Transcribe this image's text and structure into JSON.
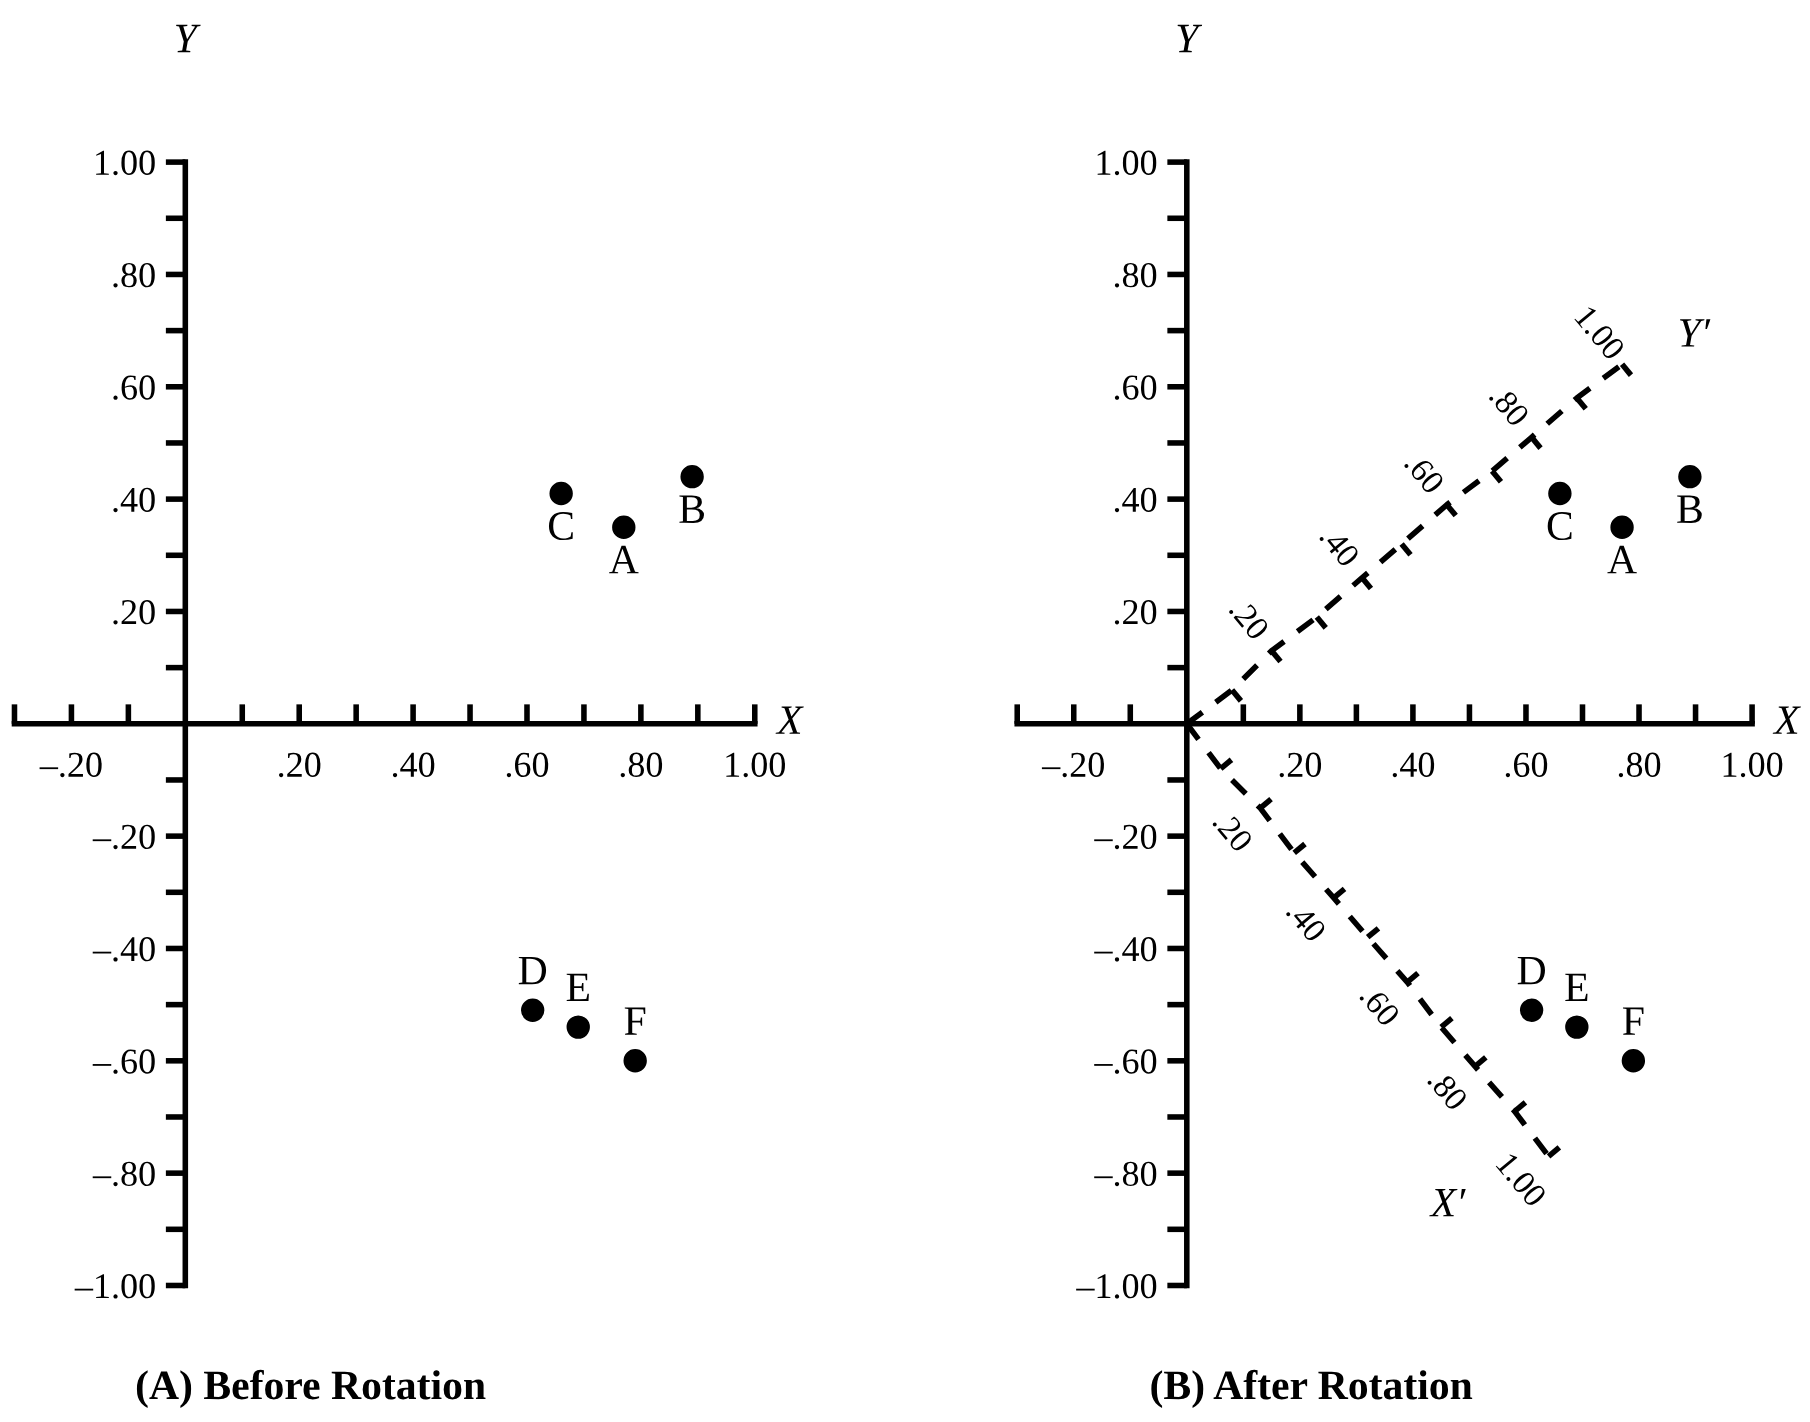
{
  "chart_data": [
    {
      "type": "scatter",
      "title": "(A) Before Rotation",
      "xlabel": "X",
      "ylabel": "Y",
      "xlim": [
        -0.3,
        1.0
      ],
      "ylim": [
        -1.0,
        1.0
      ],
      "xticks": [
        {
          "value": -0.3,
          "label": null
        },
        {
          "value": -0.2,
          "label": "–.20"
        },
        {
          "value": -0.1,
          "label": null
        },
        {
          "value": 0.1,
          "label": null
        },
        {
          "value": 0.2,
          "label": ".20"
        },
        {
          "value": 0.3,
          "label": null
        },
        {
          "value": 0.4,
          "label": ".40"
        },
        {
          "value": 0.5,
          "label": null
        },
        {
          "value": 0.6,
          "label": ".60"
        },
        {
          "value": 0.7,
          "label": null
        },
        {
          "value": 0.8,
          "label": ".80"
        },
        {
          "value": 0.9,
          "label": null
        },
        {
          "value": 1.0,
          "label": "1.00"
        }
      ],
      "yticks": [
        {
          "value": -1.0,
          "label": "–1.00"
        },
        {
          "value": -0.9,
          "label": null
        },
        {
          "value": -0.8,
          "label": "–.80"
        },
        {
          "value": -0.7,
          "label": null
        },
        {
          "value": -0.6,
          "label": "–.60"
        },
        {
          "value": -0.5,
          "label": null
        },
        {
          "value": -0.4,
          "label": "–.40"
        },
        {
          "value": -0.3,
          "label": null
        },
        {
          "value": -0.2,
          "label": "–.20"
        },
        {
          "value": -0.1,
          "label": null
        },
        {
          "value": 0.1,
          "label": null
        },
        {
          "value": 0.2,
          "label": ".20"
        },
        {
          "value": 0.3,
          "label": null
        },
        {
          "value": 0.4,
          "label": ".40"
        },
        {
          "value": 0.5,
          "label": null
        },
        {
          "value": 0.6,
          "label": ".60"
        },
        {
          "value": 0.7,
          "label": null
        },
        {
          "value": 0.8,
          "label": ".80"
        },
        {
          "value": 0.9,
          "label": null
        },
        {
          "value": 1.0,
          "label": "1.00"
        }
      ],
      "grid": false,
      "legend": false,
      "marker": "circle",
      "series": [
        {
          "type": "scatter",
          "color": "#000000",
          "x": [
            0.77,
            0.89,
            0.66,
            0.61,
            0.69,
            0.79
          ],
          "values": [
            0.35,
            0.44,
            0.41,
            -0.51,
            -0.54,
            -0.6
          ]
        }
      ],
      "annotations": [
        {
          "text": "A",
          "x": 0.77,
          "y": 0.35
        },
        {
          "text": "B",
          "x": 0.89,
          "y": 0.44
        },
        {
          "text": "C",
          "x": 0.66,
          "y": 0.41
        },
        {
          "text": "D",
          "x": 0.61,
          "y": -0.51
        },
        {
          "text": "E",
          "x": 0.69,
          "y": -0.54
        },
        {
          "text": "F",
          "x": 0.79,
          "y": -0.6
        }
      ]
    },
    {
      "type": "scatter",
      "title": "(B) After Rotation",
      "xlabel": "X",
      "ylabel": "Y",
      "xlim": [
        -0.3,
        1.0
      ],
      "ylim": [
        -1.0,
        1.0
      ],
      "xticks": [
        {
          "value": -0.3,
          "label": null
        },
        {
          "value": -0.2,
          "label": "–.20"
        },
        {
          "value": -0.1,
          "label": null
        },
        {
          "value": 0.1,
          "label": null
        },
        {
          "value": 0.2,
          "label": ".20"
        },
        {
          "value": 0.3,
          "label": null
        },
        {
          "value": 0.4,
          "label": ".40"
        },
        {
          "value": 0.5,
          "label": null
        },
        {
          "value": 0.6,
          "label": ".60"
        },
        {
          "value": 0.7,
          "label": null
        },
        {
          "value": 0.8,
          "label": ".80"
        },
        {
          "value": 0.9,
          "label": null
        },
        {
          "value": 1.0,
          "label": "1.00"
        }
      ],
      "yticks": [
        {
          "value": -1.0,
          "label": "–1.00"
        },
        {
          "value": -0.9,
          "label": null
        },
        {
          "value": -0.8,
          "label": "–.80"
        },
        {
          "value": -0.7,
          "label": null
        },
        {
          "value": -0.6,
          "label": "–.60"
        },
        {
          "value": -0.5,
          "label": null
        },
        {
          "value": -0.4,
          "label": "–.40"
        },
        {
          "value": -0.3,
          "label": null
        },
        {
          "value": -0.2,
          "label": "–.20"
        },
        {
          "value": -0.1,
          "label": null
        },
        {
          "value": 0.1,
          "label": null
        },
        {
          "value": 0.2,
          "label": ".20"
        },
        {
          "value": 0.3,
          "label": null
        },
        {
          "value": 0.4,
          "label": ".40"
        },
        {
          "value": 0.5,
          "label": null
        },
        {
          "value": 0.6,
          "label": ".60"
        },
        {
          "value": 0.7,
          "label": null
        },
        {
          "value": 0.8,
          "label": ".80"
        },
        {
          "value": 0.9,
          "label": null
        },
        {
          "value": 1.0,
          "label": "1.00"
        }
      ],
      "grid": false,
      "legend": false,
      "marker": "circle",
      "series": [
        {
          "type": "line",
          "name": "Y′",
          "color": "#000000",
          "line_style": "dashed",
          "marker": "none",
          "x": [
            0,
            0.08,
            0.15,
            0.23,
            0.31,
            0.38,
            0.46,
            0.54,
            0.61,
            0.69,
            0.77
          ],
          "values": [
            0,
            0.06,
            0.13,
            0.19,
            0.26,
            0.32,
            0.39,
            0.45,
            0.51,
            0.58,
            0.64
          ]
        },
        {
          "type": "line",
          "name": "X′",
          "color": "#000000",
          "line_style": "dashed",
          "marker": "none",
          "x": [
            0,
            0.06,
            0.13,
            0.19,
            0.26,
            0.32,
            0.39,
            0.45,
            0.51,
            0.58,
            0.64
          ],
          "values": [
            0,
            -0.08,
            -0.15,
            -0.23,
            -0.31,
            -0.38,
            -0.46,
            -0.54,
            -0.61,
            -0.69,
            -0.77
          ]
        },
        {
          "type": "scatter",
          "color": "#000000",
          "x": [
            0.77,
            0.89,
            0.66,
            0.61,
            0.69,
            0.79
          ],
          "values": [
            0.35,
            0.44,
            0.41,
            -0.51,
            -0.54,
            -0.6
          ]
        }
      ],
      "annotations": [
        {
          "text": "A",
          "x": 0.77,
          "y": 0.35
        },
        {
          "text": "B",
          "x": 0.89,
          "y": 0.44
        },
        {
          "text": "C",
          "x": 0.66,
          "y": 0.41
        },
        {
          "text": "D",
          "x": 0.61,
          "y": -0.51
        },
        {
          "text": "E",
          "x": 0.69,
          "y": -0.54
        },
        {
          "text": "F",
          "x": 0.79,
          "y": -0.6
        },
        {
          "text": ".20",
          "x": 0.15,
          "y": 0.13
        },
        {
          "text": ".40",
          "x": 0.31,
          "y": 0.26
        },
        {
          "text": ".60",
          "x": 0.46,
          "y": 0.39
        },
        {
          "text": ".80",
          "x": 0.61,
          "y": 0.51
        },
        {
          "text": "1.00",
          "x": 0.77,
          "y": 0.64
        },
        {
          "text": ".20",
          "x": 0.13,
          "y": -0.15
        },
        {
          "text": ".40",
          "x": 0.26,
          "y": -0.31
        },
        {
          "text": ".60",
          "x": 0.39,
          "y": -0.46
        },
        {
          "text": ".80",
          "x": 0.51,
          "y": -0.61
        },
        {
          "text": "1.00",
          "x": 0.64,
          "y": -0.77
        }
      ]
    }
  ]
}
